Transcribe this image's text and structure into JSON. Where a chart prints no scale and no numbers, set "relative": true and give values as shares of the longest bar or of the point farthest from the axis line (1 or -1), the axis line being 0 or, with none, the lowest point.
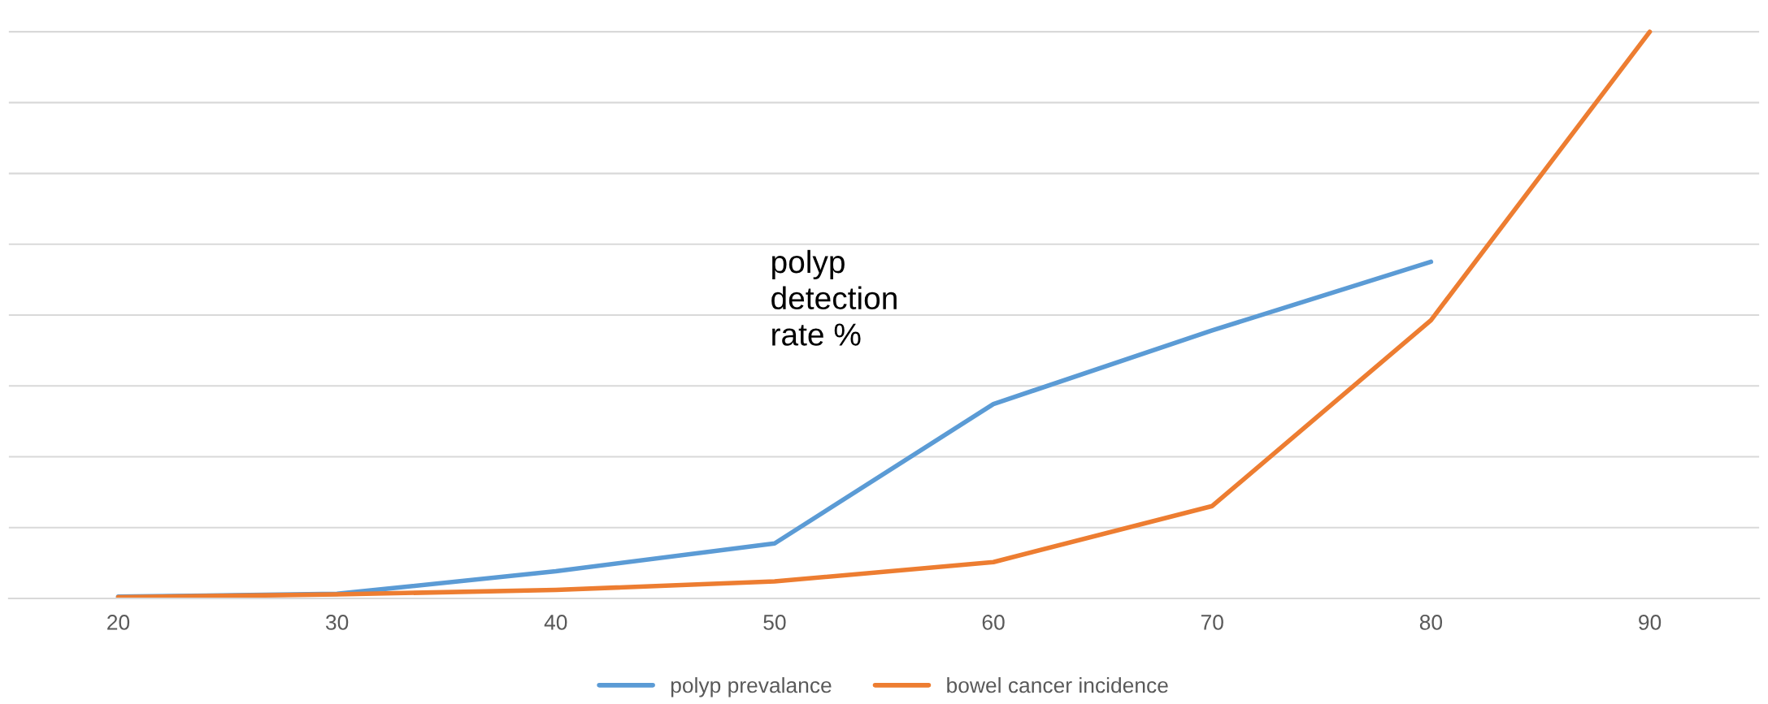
{
  "chart_data": {
    "type": "line",
    "relative": true,
    "categories": [
      "20",
      "30",
      "40",
      "50",
      "60",
      "70",
      "80",
      "90"
    ],
    "series": [
      {
        "name": "polyp prevalance",
        "color": "#5b9bd5",
        "values": [
          0.003,
          0.008,
          0.048,
          0.097,
          0.343,
          0.473,
          0.594,
          null
        ]
      },
      {
        "name": "bowel cancer incidence",
        "color": "#ed7d31",
        "values": [
          0.002,
          0.007,
          0.015,
          0.03,
          0.064,
          0.163,
          0.491,
          1
        ]
      }
    ],
    "annotations": [
      "polyp\ndetection\nrate %"
    ],
    "grid": "y",
    "legend": "bottom",
    "marker": "none",
    "line_style": "solid"
  }
}
